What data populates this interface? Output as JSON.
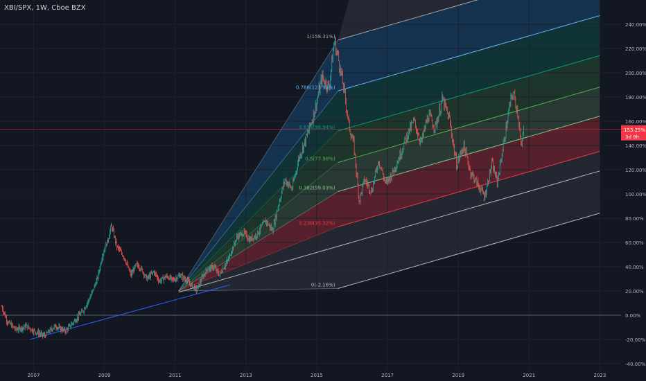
{
  "symbol": {
    "title": "XBI/SPX, 1W, Cboe BZX"
  },
  "colors": {
    "background": "#131722",
    "up": "#26a69a",
    "down": "#ef5350",
    "axis_text": "#b2b5be",
    "price_line": "#f23645",
    "zero_line": "#5d606b",
    "trend_line": "#2962ff"
  },
  "chart_data": {
    "type": "line",
    "title": "XBI/SPX, 1W, Cboe BZX",
    "xlabel": "",
    "ylabel": "",
    "xlim": [
      2006.05,
      2023.6
    ],
    "ylim": [
      -44,
      260
    ],
    "x_ticks": [
      {
        "value": 2007,
        "label": "2007"
      },
      {
        "value": 2009,
        "label": "2009"
      },
      {
        "value": 2011,
        "label": "2011"
      },
      {
        "value": 2013,
        "label": "2013"
      },
      {
        "value": 2015,
        "label": "2015"
      },
      {
        "value": 2017,
        "label": "2017"
      },
      {
        "value": 2019,
        "label": "2019"
      },
      {
        "value": 2021,
        "label": "2021"
      },
      {
        "value": 2023,
        "label": "2023"
      }
    ],
    "y_ticks": [
      {
        "value": -40,
        "label": "-40.00%"
      },
      {
        "value": -20,
        "label": "-20.00%"
      },
      {
        "value": 0,
        "label": "0.00%"
      },
      {
        "value": 20,
        "label": "20.00%"
      },
      {
        "value": 40,
        "label": "40.00%"
      },
      {
        "value": 60,
        "label": "60.00%"
      },
      {
        "value": 80,
        "label": "80.00%"
      },
      {
        "value": 100,
        "label": "100.00%"
      },
      {
        "value": 120,
        "label": "120.00%"
      },
      {
        "value": 140,
        "label": "140.00%"
      },
      {
        "value": 160,
        "label": "160.00%"
      },
      {
        "value": 180,
        "label": "180.00%"
      },
      {
        "value": 200,
        "label": "200.00%"
      },
      {
        "value": 220,
        "label": "220.00%"
      },
      {
        "value": 240,
        "label": "240.00%"
      }
    ],
    "price_series": [
      [
        2006.1,
        7
      ],
      [
        2006.25,
        -5
      ],
      [
        2006.5,
        -12
      ],
      [
        2006.8,
        -9
      ],
      [
        2007.0,
        -13
      ],
      [
        2007.3,
        -17
      ],
      [
        2007.6,
        -9
      ],
      [
        2007.9,
        -13
      ],
      [
        2008.15,
        -5
      ],
      [
        2008.4,
        4
      ],
      [
        2008.6,
        15
      ],
      [
        2008.8,
        30
      ],
      [
        2008.95,
        50
      ],
      [
        2009.1,
        62
      ],
      [
        2009.2,
        74
      ],
      [
        2009.35,
        57
      ],
      [
        2009.55,
        48
      ],
      [
        2009.75,
        33
      ],
      [
        2009.9,
        42
      ],
      [
        2010.05,
        38
      ],
      [
        2010.2,
        30
      ],
      [
        2010.4,
        36
      ],
      [
        2010.55,
        28
      ],
      [
        2010.75,
        32
      ],
      [
        2010.95,
        29
      ],
      [
        2011.15,
        33
      ],
      [
        2011.35,
        28
      ],
      [
        2011.6,
        21
      ],
      [
        2011.75,
        30
      ],
      [
        2011.9,
        38
      ],
      [
        2012.1,
        40
      ],
      [
        2012.25,
        33
      ],
      [
        2012.5,
        46
      ],
      [
        2012.75,
        65
      ],
      [
        2012.95,
        68
      ],
      [
        2013.1,
        62
      ],
      [
        2013.3,
        66
      ],
      [
        2013.55,
        78
      ],
      [
        2013.75,
        70
      ],
      [
        2013.95,
        95
      ],
      [
        2014.1,
        112
      ],
      [
        2014.3,
        104
      ],
      [
        2014.5,
        130
      ],
      [
        2014.75,
        150
      ],
      [
        2014.95,
        170
      ],
      [
        2015.15,
        196
      ],
      [
        2015.35,
        188
      ],
      [
        2015.5,
        227
      ],
      [
        2015.65,
        206
      ],
      [
        2015.8,
        180
      ],
      [
        2015.9,
        158
      ],
      [
        2016.05,
        140
      ],
      [
        2016.2,
        94
      ],
      [
        2016.35,
        112
      ],
      [
        2016.55,
        102
      ],
      [
        2016.75,
        128
      ],
      [
        2016.95,
        108
      ],
      [
        2017.15,
        118
      ],
      [
        2017.35,
        132
      ],
      [
        2017.55,
        148
      ],
      [
        2017.75,
        160
      ],
      [
        2017.95,
        142
      ],
      [
        2018.15,
        165
      ],
      [
        2018.35,
        155
      ],
      [
        2018.55,
        178
      ],
      [
        2018.75,
        162
      ],
      [
        2018.95,
        124
      ],
      [
        2019.15,
        140
      ],
      [
        2019.35,
        118
      ],
      [
        2019.55,
        108
      ],
      [
        2019.75,
        98
      ],
      [
        2019.95,
        125
      ],
      [
        2020.1,
        110
      ],
      [
        2020.25,
        136
      ],
      [
        2020.45,
        172
      ],
      [
        2020.55,
        184
      ],
      [
        2020.7,
        165
      ],
      [
        2020.78,
        136
      ],
      [
        2020.85,
        153.25
      ]
    ],
    "trend_line": {
      "name": "",
      "x": [
        2006.9,
        2012.55
      ],
      "y": [
        -20,
        25
      ]
    },
    "fib_fan": {
      "start": {
        "x": 2011.1,
        "y": 20
      },
      "end_x": 2015.6,
      "channel_slope": 8.4,
      "right_x": 2023.0,
      "levels": [
        {
          "ratio": 0,
          "label": "0(-2.16%)",
          "y_at_end": 22,
          "color": "#b2b5be"
        },
        {
          "ratio": 0.236,
          "label": "0.236(35.32%)",
          "y_at_end": 73,
          "color": "#f23645"
        },
        {
          "ratio": 0.382,
          "label": "0.382(59.03%)",
          "y_at_end": 102,
          "color": "#81c784"
        },
        {
          "ratio": 0.5,
          "label": "0.5(77.98%)",
          "y_at_end": 126,
          "color": "#4caf50"
        },
        {
          "ratio": 0.618,
          "label": "0.618(96.94%)",
          "y_at_end": 152,
          "color": "#089981"
        },
        {
          "ratio": 0.786,
          "label": "0.786(123.93%)",
          "y_at_end": 185,
          "color": "#64b5f6"
        },
        {
          "ratio": 1,
          "label": "1(158.31%)",
          "y_at_end": 227,
          "color": "#a6a6a6"
        }
      ]
    },
    "current_price": {
      "value": 153.25,
      "label": "153.25%",
      "countdown": "3d 9h"
    }
  }
}
